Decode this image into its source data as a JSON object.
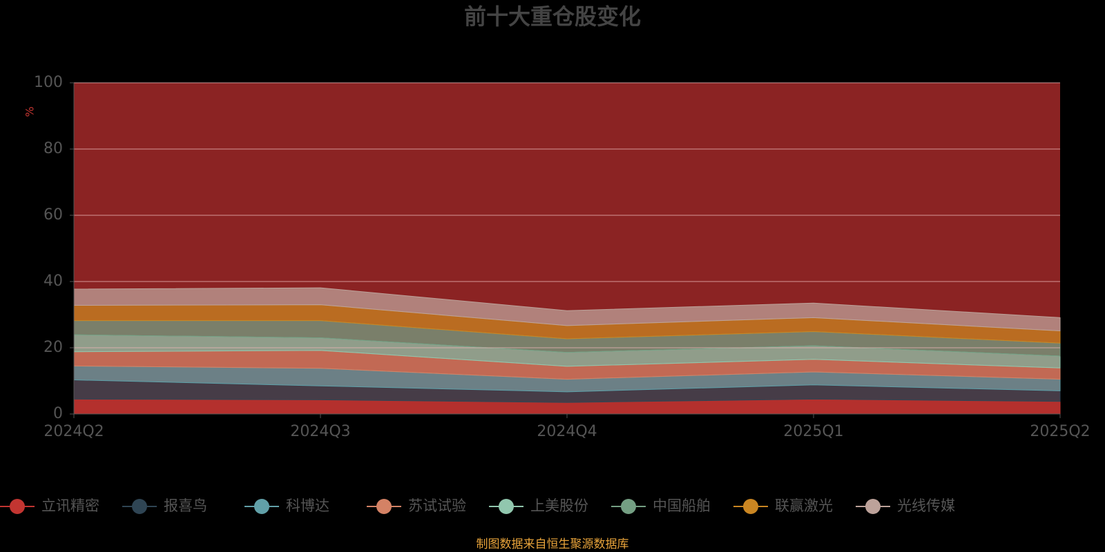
{
  "chart_data": {
    "type": "stacked_area",
    "title": "前十大重仓股变化",
    "y_label": "%",
    "categories": [
      "2024Q2",
      "2024Q3",
      "2024Q4",
      "2025Q1",
      "2025Q2"
    ],
    "series": [
      {
        "name": "立讯精密",
        "color": "#c23531",
        "values": [
          4.5,
          4.3,
          3.5,
          4.5,
          3.8
        ]
      },
      {
        "name": "报喜鸟",
        "color": "#2f4554",
        "values": [
          5.8,
          4.2,
          3.2,
          4.3,
          3.2
        ]
      },
      {
        "name": "科博达",
        "color": "#61a0a8",
        "values": [
          4.2,
          5.3,
          3.8,
          3.9,
          3.5
        ]
      },
      {
        "name": "苏试试验",
        "color": "#d48265",
        "values": [
          4.3,
          5.4,
          3.9,
          3.8,
          3.4
        ]
      },
      {
        "name": "上美股份",
        "color": "#91c7ae",
        "values": [
          5.1,
          3.8,
          4.2,
          4.1,
          3.6
        ]
      },
      {
        "name": "中国船舶",
        "color": "#749f83",
        "values": [
          4.3,
          5.2,
          4.1,
          4.3,
          3.9
        ]
      },
      {
        "name": "联赢激光",
        "color": "#ca8622",
        "values": [
          4.6,
          4.8,
          4.0,
          4.2,
          3.7
        ]
      },
      {
        "name": "光线传媒",
        "color": "#bda29a",
        "values": [
          4.9,
          5.1,
          4.5,
          4.4,
          4.0
        ]
      }
    ],
    "ylim": [
      0,
      100
    ],
    "yticks": [
      0,
      20,
      40,
      60,
      80,
      100
    ],
    "grid": true,
    "source": "制图数据来自恒生聚源数据库"
  }
}
